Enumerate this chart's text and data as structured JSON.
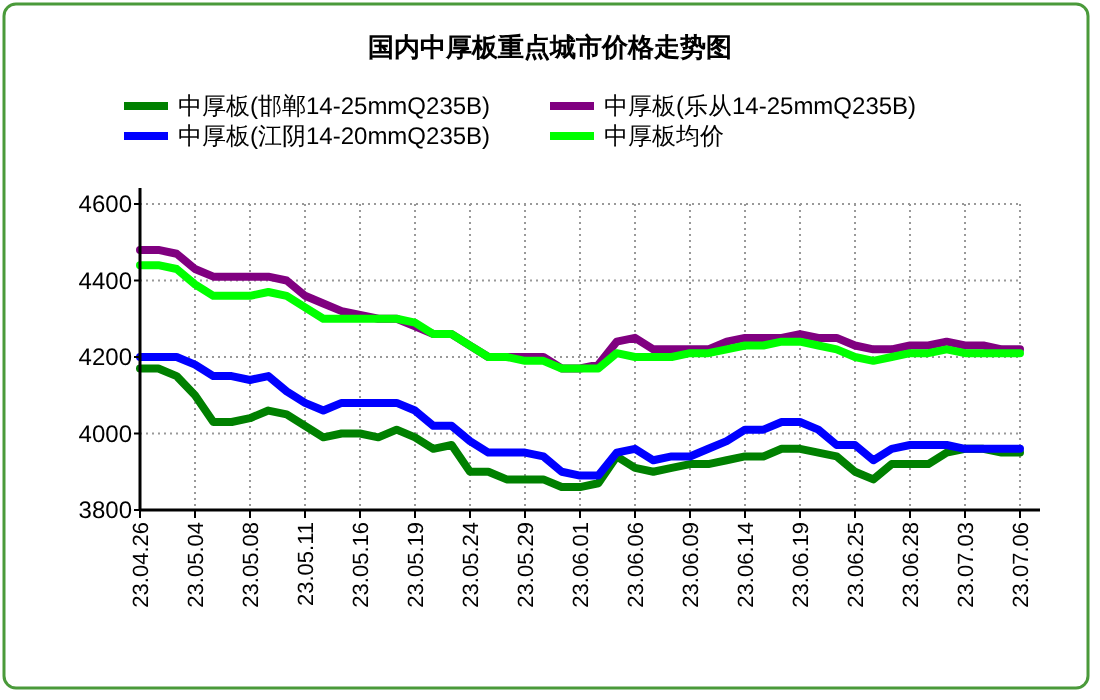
{
  "chart_data": {
    "type": "line",
    "title": "国内中厚板重点城市价格走势图",
    "categories": [
      "23.04.26",
      null,
      null,
      "23.05.04",
      null,
      null,
      "23.05.08",
      null,
      null,
      "23.05.11",
      null,
      null,
      "23.05.16",
      null,
      null,
      "23.05.19",
      null,
      null,
      "23.05.24",
      null,
      null,
      "23.05.29",
      null,
      null,
      "23.06.01",
      null,
      null,
      "23.06.06",
      null,
      null,
      "23.06.09",
      null,
      null,
      "23.06.14",
      null,
      null,
      "23.06.19",
      null,
      null,
      "23.06.25",
      null,
      null,
      "23.06.28",
      null,
      null,
      "23.07.03",
      null,
      null,
      "23.07.06"
    ],
    "series": [
      {
        "name": "中厚板(邯郸14-25mmQ235B)",
        "color": "#008000",
        "values": [
          4170,
          4170,
          4150,
          4100,
          4030,
          4030,
          4040,
          4060,
          4050,
          4020,
          3990,
          4000,
          4000,
          3990,
          4010,
          3990,
          3960,
          3970,
          3900,
          3900,
          3880,
          3880,
          3880,
          3860,
          3860,
          3870,
          3940,
          3910,
          3900,
          3910,
          3920,
          3920,
          3930,
          3940,
          3940,
          3960,
          3960,
          3950,
          3940,
          3900,
          3880,
          3920,
          3920,
          3920,
          3950,
          3960,
          3960,
          3950,
          3950
        ]
      },
      {
        "name": "中厚板(江阴14-20mmQ235B)",
        "color": "#0000ff",
        "values": [
          4200,
          4200,
          4200,
          4180,
          4150,
          4150,
          4140,
          4150,
          4110,
          4080,
          4060,
          4080,
          4080,
          4080,
          4080,
          4060,
          4020,
          4020,
          3980,
          3950,
          3950,
          3950,
          3940,
          3900,
          3890,
          3890,
          3950,
          3960,
          3930,
          3940,
          3940,
          3960,
          3980,
          4010,
          4010,
          4030,
          4030,
          4010,
          3970,
          3970,
          3930,
          3960,
          3970,
          3970,
          3970,
          3960,
          3960,
          3960,
          3960
        ]
      },
      {
        "name": "中厚板(乐从14-25mmQ235B)",
        "color": "#800080",
        "values": [
          4480,
          4480,
          4470,
          4430,
          4410,
          4410,
          4410,
          4410,
          4400,
          4360,
          4340,
          4320,
          4310,
          4300,
          4300,
          4280,
          4260,
          4260,
          4230,
          4200,
          4200,
          4200,
          4200,
          4170,
          4170,
          4180,
          4240,
          4250,
          4220,
          4220,
          4220,
          4220,
          4240,
          4250,
          4250,
          4250,
          4260,
          4250,
          4250,
          4230,
          4220,
          4220,
          4230,
          4230,
          4240,
          4230,
          4230,
          4220,
          4220
        ]
      },
      {
        "name": "中厚板均价",
        "color": "#00ff00",
        "values": [
          4440,
          4440,
          4430,
          4390,
          4360,
          4360,
          4360,
          4370,
          4360,
          4330,
          4300,
          4300,
          4300,
          4300,
          4300,
          4290,
          4260,
          4260,
          4230,
          4200,
          4200,
          4190,
          4190,
          4170,
          4170,
          4170,
          4210,
          4200,
          4200,
          4200,
          4210,
          4210,
          4220,
          4230,
          4230,
          4240,
          4240,
          4230,
          4220,
          4200,
          4190,
          4200,
          4210,
          4210,
          4220,
          4210,
          4210,
          4210,
          4210
        ]
      }
    ],
    "ylim": [
      3800,
      4600
    ],
    "yticks": [
      3800,
      4000,
      4200,
      4400,
      4600
    ],
    "grid": true,
    "legend": "top",
    "marker": "none",
    "line_style": "solid"
  }
}
